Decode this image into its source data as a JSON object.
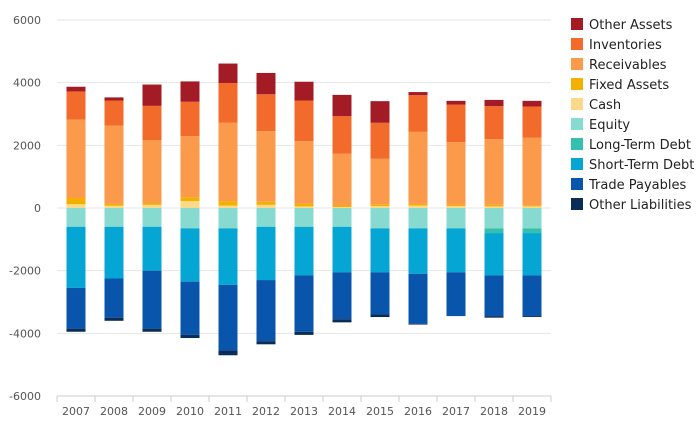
{
  "chart_data": {
    "type": "bar",
    "stacked": true,
    "title": "",
    "xlabel": "",
    "ylabel": "",
    "ylim": [
      -6000,
      6000
    ],
    "yticks": [
      6000,
      4000,
      2000,
      0,
      -2000,
      -4000,
      -6000
    ],
    "ytick_labels": [
      "6000",
      "4000",
      "2000",
      "0",
      "-2000",
      "-4000",
      "-6000"
    ],
    "grid": "horizontal",
    "legend_position": "right",
    "categories": [
      "2007",
      "2008",
      "2009",
      "2010",
      "2011",
      "2012",
      "2013",
      "2014",
      "2015",
      "2016",
      "2017",
      "2018",
      "2019"
    ],
    "series": [
      {
        "name": "Other Assets",
        "color": "#a31c25",
        "values": [
          150,
          100,
          680,
          650,
          620,
          680,
          600,
          680,
          690,
          100,
          120,
          200,
          180
        ]
      },
      {
        "name": "Inventories",
        "color": "#f26b2b",
        "values": [
          900,
          800,
          1100,
          1100,
          1270,
          1180,
          1300,
          1200,
          1150,
          1170,
          1200,
          1050,
          1000
        ]
      },
      {
        "name": "Receivables",
        "color": "#fb9a4b",
        "values": [
          2500,
          2500,
          2000,
          1950,
          2500,
          2250,
          2000,
          1650,
          1450,
          2300,
          2000,
          2100,
          2150
        ]
      },
      {
        "name": "Fixed Assets",
        "color": "#f4b000",
        "values": [
          200,
          60,
          60,
          120,
          140,
          100,
          80,
          50,
          60,
          50,
          40,
          50,
          40
        ]
      },
      {
        "name": "Cash",
        "color": "#fbd98a",
        "values": [
          120,
          70,
          100,
          220,
          80,
          100,
          50,
          30,
          60,
          80,
          60,
          50,
          50
        ]
      },
      {
        "name": "Equity",
        "color": "#86dad0",
        "values": [
          -600,
          -600,
          -600,
          -650,
          -650,
          -600,
          -600,
          -600,
          -650,
          -650,
          -650,
          -650,
          -650
        ]
      },
      {
        "name": "Long-Term Debt",
        "color": "#35c0ae",
        "values": [
          0,
          0,
          0,
          0,
          0,
          0,
          0,
          0,
          0,
          0,
          0,
          -150,
          -150
        ]
      },
      {
        "name": "Short-Term Debt",
        "color": "#06a6d4",
        "values": [
          -1950,
          -1650,
          -1400,
          -1700,
          -1800,
          -1700,
          -1550,
          -1450,
          -1400,
          -1450,
          -1400,
          -1350,
          -1350
        ]
      },
      {
        "name": "Trade Payables",
        "color": "#0a55ac",
        "values": [
          -1300,
          -1250,
          -1850,
          -1700,
          -2100,
          -1950,
          -1800,
          -1500,
          -1350,
          -1600,
          -1400,
          -1300,
          -1300
        ]
      },
      {
        "name": "Other Liabilities",
        "color": "#0a2d57",
        "values": [
          -100,
          -100,
          -100,
          -100,
          -150,
          -100,
          -100,
          -100,
          -80,
          -20,
          0,
          -50,
          -30
        ]
      }
    ]
  }
}
